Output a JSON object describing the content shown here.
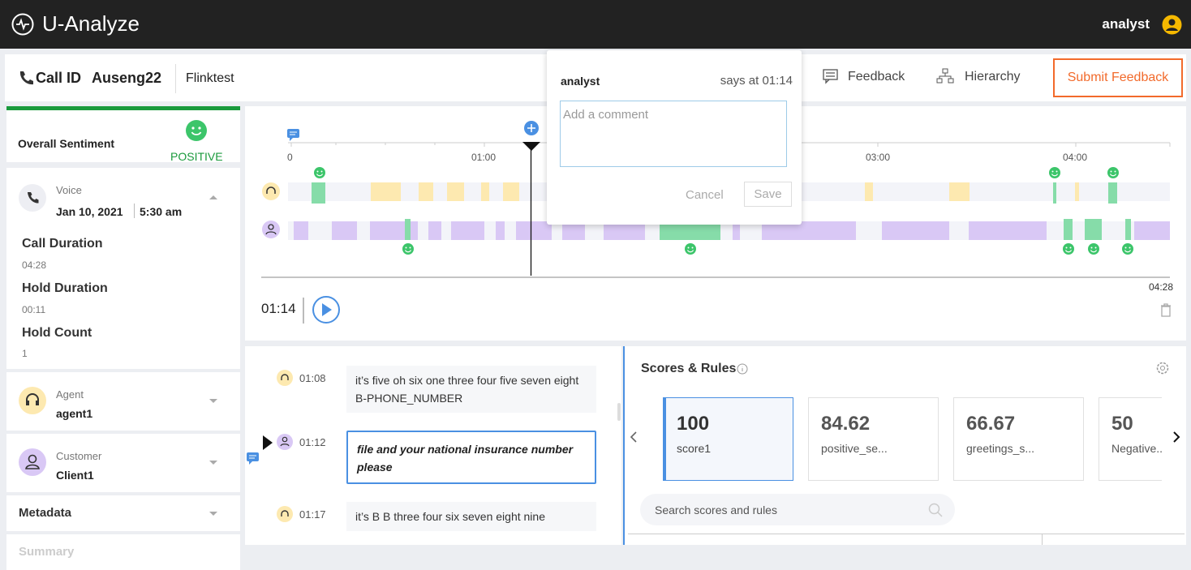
{
  "header": {
    "brand": "U-Analyze",
    "user": "analyst"
  },
  "call": {
    "label": "Call ID",
    "id": "Auseng22",
    "tenant": "Flinktest"
  },
  "toolbar": {
    "feedback": "Feedback",
    "hierarchy": "Hierarchy",
    "submit": "Submit Feedback"
  },
  "comment": {
    "author": "analyst",
    "time_note": "says at 01:14",
    "placeholder": "Add a comment",
    "cancel": "Cancel",
    "save": "Save"
  },
  "sentiment": {
    "label": "Overall Sentiment",
    "value": "POSITIVE"
  },
  "voice": {
    "label": "Voice",
    "date": "Jan 10, 2021",
    "time": "5:30 am",
    "stats": [
      {
        "label": "Call Duration",
        "value": "04:28"
      },
      {
        "label": "Hold Duration",
        "value": "00:11"
      },
      {
        "label": "Hold Count",
        "value": 1
      }
    ]
  },
  "agent": {
    "label": "Agent",
    "name": "agent1"
  },
  "customer": {
    "label": "Customer",
    "name": "Client1"
  },
  "sections": [
    "Metadata",
    "Summary"
  ],
  "timeline": {
    "ticks": [
      "0",
      "01:00",
      "03:00",
      "04:00"
    ],
    "duration": "04:28"
  },
  "player": {
    "position": "01:14"
  },
  "transcript": [
    {
      "time": "01:08",
      "text": "it’s five oh six one three four five seven eight B-PHONE_NUMBER"
    },
    {
      "time": "01:12",
      "text": "file and your national insurance number please"
    },
    {
      "time": "01:17",
      "text": "it’s B B three four six seven eight nine"
    }
  ],
  "scores": {
    "title": "Scores & Rules",
    "cards": [
      {
        "value": 100,
        "label": "score1"
      },
      {
        "value": 84.62,
        "label": "positive_se..."
      },
      {
        "value": 66.67,
        "label": "greetings_s..."
      },
      {
        "value": 50,
        "label": "Negative..."
      }
    ],
    "search_placeholder": "Search scores and rules"
  }
}
